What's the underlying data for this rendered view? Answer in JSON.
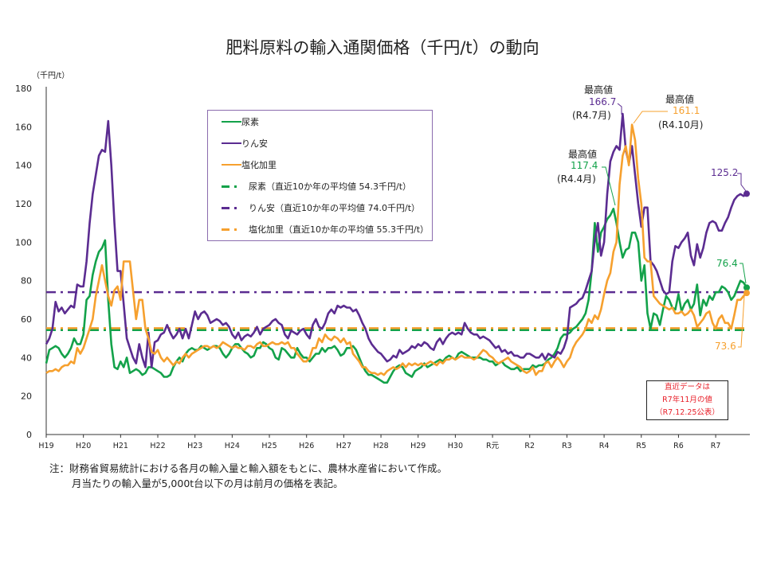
{
  "title": "肥料原料の輸入通関価格（千円/t）の動向",
  "unit_label": "（千円/t）",
  "legend": {
    "items": [
      {
        "label": "尿素",
        "color": "#13a24a",
        "style": "solid"
      },
      {
        "label": "りん安",
        "color": "#5b2c91",
        "style": "solid"
      },
      {
        "label": "塩化加里",
        "color": "#f6a02e",
        "style": "solid"
      },
      {
        "label": "尿素（直近10か年の平均値  54.3千円/t）",
        "color": "#13a24a",
        "style": "dashdot"
      },
      {
        "label": "りん安（直近10か年の平均値  74.0千円/t）",
        "color": "#5b2c91",
        "style": "dashdot"
      },
      {
        "label": "塩化加里（直近10か年の平均値  55.3千円/t）",
        "color": "#f6a02e",
        "style": "dashdot"
      }
    ],
    "border_color": "#8b6cae"
  },
  "annotations": {
    "peak_label": "最高値",
    "rinan_peak": {
      "value": "166.7",
      "date": "(R4.7月)"
    },
    "kari_peak": {
      "value": "161.1",
      "date": "(R4.10月)"
    },
    "nyoso_peak": {
      "value": "117.4",
      "date": "(R4.4月)"
    },
    "rinan_latest": "125.2",
    "nyoso_latest": "76.4",
    "kari_latest": "73.6",
    "latest_box": [
      "直近データは",
      "R7年11月の値",
      "（R7.12.25公表）"
    ],
    "latest_box_color": "#e8202a"
  },
  "notes": [
    "注：財務省貿易統計における各月の輸入量と輸入額をもとに、農林水産省において作成。",
    "月当たりの輸入量が5,000t台以下の月は前月の価格を表記。"
  ],
  "chart_data": {
    "type": "line",
    "title": "肥料原料の輸入通関価格（千円/t）の動向",
    "ylabel": "（千円/t）",
    "ylim": [
      0,
      180
    ],
    "yticks": [
      0,
      20,
      40,
      60,
      80,
      100,
      120,
      140,
      160,
      180
    ],
    "xticks": [
      "H19",
      "H20",
      "H21",
      "H22",
      "H23",
      "H24",
      "H25",
      "H26",
      "H27",
      "H28",
      "H29",
      "H30",
      "R元",
      "R2",
      "R3",
      "R4",
      "R5",
      "R6",
      "R7"
    ],
    "frequency": "monthly",
    "grid": false,
    "legend_position": "top-left inside",
    "series": [
      {
        "name": "尿素",
        "color": "#13a24a",
        "values": [
          37,
          44,
          45,
          46,
          45,
          42,
          40,
          42,
          45,
          50,
          47,
          47,
          52,
          70,
          72,
          83,
          90,
          95,
          97,
          101,
          70,
          47,
          35,
          34,
          38,
          35,
          40,
          32,
          33,
          34,
          33,
          31,
          32,
          35,
          35,
          34,
          33,
          32,
          30,
          30,
          31,
          35,
          38,
          40,
          38,
          42,
          44,
          45,
          44,
          44,
          46,
          45,
          44,
          45,
          46,
          46,
          45,
          42,
          40,
          42,
          45,
          47,
          47,
          45,
          43,
          42,
          40,
          41,
          45,
          45,
          48,
          47,
          45,
          44,
          40,
          39,
          45,
          44,
          42,
          40,
          40,
          45,
          42,
          40,
          40,
          38,
          40,
          42,
          42,
          45,
          43,
          45,
          45,
          46,
          44,
          41,
          42,
          45,
          45,
          46,
          44,
          40,
          36,
          33,
          31,
          31,
          30,
          29,
          28,
          27,
          27,
          30,
          33,
          35,
          36,
          35,
          32,
          31,
          30,
          33,
          34,
          35,
          37,
          35,
          36,
          37,
          38,
          39,
          38,
          40,
          41,
          40,
          39,
          42,
          43,
          42,
          41,
          40,
          40,
          40,
          40,
          39,
          39,
          38,
          38,
          36,
          37,
          38,
          36,
          35,
          34,
          34,
          35,
          33,
          34,
          34,
          34,
          36,
          35,
          36,
          36,
          37,
          39,
          40,
          42,
          45,
          50,
          52,
          52,
          53,
          55,
          56,
          58,
          60,
          63,
          70,
          85,
          110,
          95,
          105,
          108,
          112,
          114,
          117.4,
          110,
          100,
          92,
          96,
          97,
          105,
          105,
          100,
          80,
          88,
          63,
          55,
          63,
          62,
          57,
          65,
          72,
          70,
          66,
          65,
          73,
          64,
          68,
          70,
          65,
          68,
          78,
          62,
          70,
          67,
          72,
          70,
          74,
          74,
          77,
          76,
          74,
          70,
          72,
          76,
          80,
          79,
          76.4
        ]
      },
      {
        "name": "りん安",
        "color": "#5b2c91",
        "values": [
          47,
          50,
          55,
          69,
          64,
          66,
          63,
          65,
          67,
          66,
          78,
          77,
          77,
          90,
          110,
          125,
          135,
          145,
          148,
          147,
          163,
          140,
          110,
          85,
          85,
          68,
          50,
          45,
          40,
          37,
          47,
          40,
          35,
          53,
          35,
          48,
          49,
          52,
          53,
          57,
          53,
          50,
          52,
          55,
          50,
          55,
          50,
          57,
          64,
          60,
          63,
          64,
          62,
          58,
          59,
          60,
          59,
          57,
          58,
          56,
          52,
          50,
          53,
          49,
          51,
          52,
          51,
          53,
          56,
          52,
          55,
          56,
          57,
          59,
          60,
          58,
          57,
          52,
          50,
          54,
          53,
          52,
          54,
          55,
          52,
          50,
          57,
          60,
          56,
          55,
          58,
          63,
          65,
          63,
          67,
          66,
          67,
          66,
          66,
          64,
          65,
          62,
          58,
          55,
          50,
          47,
          45,
          43,
          42,
          40,
          38,
          39,
          41,
          40,
          44,
          42,
          43,
          44,
          46,
          45,
          47,
          46,
          48,
          47,
          45,
          44,
          48,
          50,
          47,
          50,
          52,
          53,
          52,
          53,
          52,
          58,
          55,
          53,
          52,
          52,
          50,
          51,
          50,
          49,
          47,
          45,
          46,
          43,
          44,
          42,
          43,
          41,
          41,
          40,
          40,
          42,
          42,
          41,
          40,
          40,
          42,
          39,
          42,
          41,
          40,
          43,
          42,
          45,
          50,
          66,
          67,
          68,
          70,
          71,
          75,
          80,
          85,
          101,
          110,
          93,
          100,
          125,
          142,
          147,
          150,
          148,
          166.7,
          148,
          141,
          150,
          135,
          120,
          108,
          118,
          118,
          90,
          88,
          85,
          80,
          75,
          73,
          74,
          90,
          98,
          97,
          100,
          102,
          105,
          93,
          88,
          99,
          92,
          97,
          105,
          110,
          111,
          110,
          106,
          106,
          110,
          113,
          118,
          122,
          124,
          125,
          124,
          125.2
        ]
      },
      {
        "name": "塩化加里",
        "color": "#f6a02e",
        "values": [
          32,
          33,
          33,
          34,
          33,
          35,
          36,
          36,
          38,
          37,
          45,
          42,
          45,
          50,
          55,
          60,
          72,
          80,
          88,
          80,
          72,
          67,
          75,
          77,
          70,
          90,
          90,
          90,
          75,
          60,
          70,
          70,
          55,
          50,
          43,
          42,
          44,
          40,
          38,
          40,
          38,
          36,
          38,
          37,
          40,
          42,
          40,
          42,
          43,
          44,
          45,
          46,
          46,
          45,
          46,
          45,
          46,
          48,
          47,
          46,
          45,
          46,
          45,
          45,
          44,
          46,
          46,
          45,
          47,
          48,
          46,
          46,
          47,
          48,
          47,
          47,
          48,
          47,
          48,
          45,
          45,
          42,
          40,
          38,
          38,
          40,
          45,
          45,
          50,
          48,
          52,
          50,
          49,
          51,
          50,
          48,
          50,
          47,
          48,
          42,
          40,
          38,
          35,
          35,
          33,
          32,
          32,
          31,
          32,
          31,
          33,
          34,
          35,
          34,
          35,
          37,
          35,
          37,
          36,
          37,
          36,
          37,
          36,
          37,
          38,
          37,
          36,
          38,
          37,
          39,
          39,
          40,
          39,
          40,
          41,
          40,
          40,
          40,
          39,
          40,
          42,
          44,
          43,
          41,
          40,
          38,
          37,
          38,
          39,
          40,
          38,
          37,
          36,
          35,
          33,
          32,
          33,
          35,
          31,
          33,
          33,
          37,
          38,
          35,
          38,
          40,
          38,
          35,
          38,
          40,
          45,
          48,
          50,
          52,
          55,
          60,
          58,
          62,
          60,
          65,
          73,
          80,
          84,
          95,
          100,
          130,
          145,
          150,
          140,
          161.1,
          153,
          133,
          120,
          92,
          90,
          90,
          72,
          70,
          68,
          67,
          66,
          65,
          66,
          63,
          63,
          64,
          62,
          63,
          65,
          62,
          56,
          58,
          60,
          63,
          64,
          58,
          55,
          60,
          62,
          58,
          58,
          55,
          62,
          70,
          70,
          72,
          73.6
        ]
      }
    ],
    "reference_lines": [
      {
        "name": "尿素（直近10か年の平均値  54.3千円/t）",
        "value": 54.3,
        "color": "#13a24a"
      },
      {
        "name": "りん安（直近10か年の平均値  74.0千円/t）",
        "value": 74.0,
        "color": "#5b2c91"
      },
      {
        "name": "塩化加里（直近10か年の平均値  55.3千円/t）",
        "value": 55.3,
        "color": "#f6a02e"
      }
    ]
  }
}
